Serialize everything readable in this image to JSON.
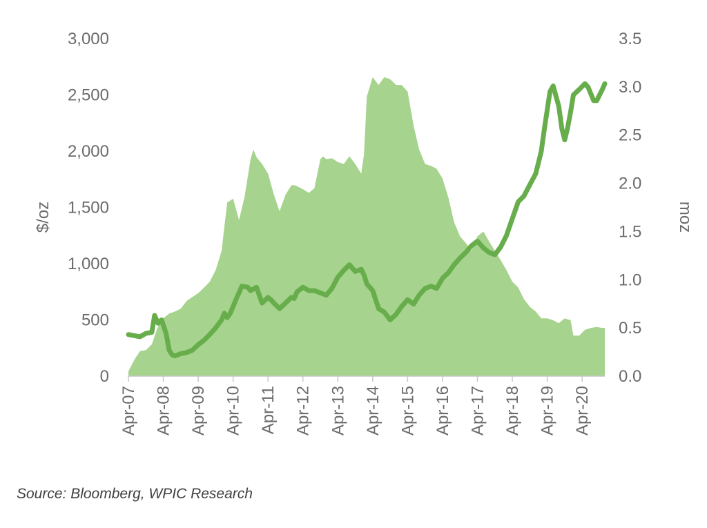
{
  "chart_data": {
    "type": "area",
    "colors": {
      "area": "#a6d38d",
      "line": "#68ad4c",
      "axis": "#c8c8c8",
      "text": "#6b6b6b"
    },
    "x_tick_labels": [
      "Apr-07",
      "Apr-08",
      "Apr-09",
      "Apr-10",
      "Apr-11",
      "Apr-12",
      "Apr-13",
      "Apr-14",
      "Apr-15",
      "Apr-16",
      "Apr-17",
      "Apr-18",
      "Apr-19",
      "Apr-20"
    ],
    "x_range": [
      2007.25,
      2020.9
    ],
    "y_left": {
      "label": "$/oz",
      "range": [
        0,
        3000
      ],
      "ticks": [
        0,
        500,
        1000,
        1500,
        2000,
        2500,
        3000
      ],
      "tick_labels": [
        "0",
        "500",
        "1,000",
        "1,500",
        "2,000",
        "2,500",
        "3,000"
      ]
    },
    "y_right": {
      "label": "moz",
      "range": [
        0,
        3.5
      ],
      "ticks": [
        0,
        0.5,
        1,
        1.5,
        2,
        2.5,
        3,
        3.5
      ],
      "tick_labels": [
        "0.0",
        "0.5",
        "1.0",
        "1.5",
        "2.0",
        "2.5",
        "3.0",
        "3.5"
      ]
    },
    "series": [
      {
        "type": "area",
        "axis": "right",
        "x": [
          2007.25,
          2007.42,
          2007.58,
          2007.75,
          2007.92,
          2008.08,
          2008.25,
          2008.42,
          2008.58,
          2008.75,
          2008.92,
          2009.08,
          2009.25,
          2009.42,
          2009.58,
          2009.75,
          2009.92,
          2010.0,
          2010.08,
          2010.25,
          2010.42,
          2010.58,
          2010.75,
          2010.83,
          2010.92,
          2011.08,
          2011.25,
          2011.42,
          2011.58,
          2011.75,
          2011.92,
          2012.0,
          2012.08,
          2012.25,
          2012.42,
          2012.58,
          2012.75,
          2012.83,
          2012.92,
          2013.08,
          2013.25,
          2013.42,
          2013.58,
          2013.75,
          2013.92,
          2014.0,
          2014.08,
          2014.25,
          2014.42,
          2014.58,
          2014.75,
          2014.92,
          2015.08,
          2015.25,
          2015.42,
          2015.58,
          2015.75,
          2015.92,
          2016.08,
          2016.25,
          2016.42,
          2016.58,
          2016.75,
          2016.92,
          2017.08,
          2017.25,
          2017.42,
          2017.58,
          2017.75,
          2017.92,
          2018.08,
          2018.25,
          2018.42,
          2018.58,
          2018.75,
          2018.92,
          2019.08,
          2019.25,
          2019.42,
          2019.58,
          2019.75,
          2019.92,
          2020.0,
          2020.17,
          2020.33,
          2020.5,
          2020.67,
          2020.83,
          2020.9
        ],
        "y": [
          0.05,
          0.17,
          0.26,
          0.27,
          0.33,
          0.5,
          0.6,
          0.65,
          0.67,
          0.7,
          0.78,
          0.82,
          0.86,
          0.92,
          0.98,
          1.1,
          1.3,
          1.55,
          1.8,
          1.84,
          1.62,
          1.86,
          2.25,
          2.35,
          2.27,
          2.2,
          2.1,
          1.88,
          1.71,
          1.88,
          1.98,
          1.98,
          1.97,
          1.94,
          1.9,
          1.95,
          2.25,
          2.28,
          2.25,
          2.26,
          2.22,
          2.2,
          2.28,
          2.2,
          2.1,
          2.3,
          2.9,
          3.1,
          3.02,
          3.1,
          3.08,
          3.02,
          3.02,
          2.95,
          2.6,
          2.35,
          2.2,
          2.18,
          2.15,
          2.05,
          1.85,
          1.6,
          1.45,
          1.38,
          1.3,
          1.45,
          1.5,
          1.4,
          1.3,
          1.2,
          1.1,
          0.98,
          0.92,
          0.8,
          0.72,
          0.67,
          0.6,
          0.6,
          0.58,
          0.55,
          0.6,
          0.58,
          0.42,
          0.42,
          0.48,
          0.5,
          0.51,
          0.5,
          0.5
        ]
      },
      {
        "type": "line",
        "axis": "left",
        "x": [
          2007.25,
          2007.42,
          2007.58,
          2007.75,
          2007.92,
          2008.0,
          2008.1,
          2008.2,
          2008.33,
          2008.42,
          2008.5,
          2008.58,
          2008.75,
          2008.92,
          2009.08,
          2009.25,
          2009.42,
          2009.58,
          2009.75,
          2009.92,
          2010.0,
          2010.08,
          2010.17,
          2010.33,
          2010.5,
          2010.67,
          2010.75,
          2010.92,
          2011.08,
          2011.25,
          2011.33,
          2011.42,
          2011.58,
          2011.75,
          2011.92,
          2012.0,
          2012.08,
          2012.25,
          2012.42,
          2012.58,
          2012.75,
          2012.92,
          2013.08,
          2013.25,
          2013.42,
          2013.58,
          2013.75,
          2013.92,
          2014.0,
          2014.08,
          2014.25,
          2014.42,
          2014.58,
          2014.75,
          2014.92,
          2015.08,
          2015.25,
          2015.42,
          2015.58,
          2015.75,
          2015.92,
          2016.08,
          2016.25,
          2016.42,
          2016.58,
          2016.75,
          2016.92,
          2017.08,
          2017.25,
          2017.42,
          2017.58,
          2017.75,
          2017.92,
          2018.08,
          2018.25,
          2018.42,
          2018.58,
          2018.75,
          2018.92,
          2019.0,
          2019.08,
          2019.17,
          2019.33,
          2019.42,
          2019.58,
          2019.67,
          2019.75,
          2019.83,
          2019.92,
          2020.0,
          2020.17,
          2020.33,
          2020.42,
          2020.58,
          2020.67,
          2020.75,
          2020.83,
          2020.9
        ],
        "y": [
          370,
          360,
          350,
          380,
          390,
          540,
          470,
          500,
          380,
          230,
          190,
          180,
          200,
          210,
          230,
          280,
          320,
          370,
          430,
          500,
          560,
          520,
          560,
          680,
          800,
          790,
          760,
          790,
          650,
          700,
          680,
          650,
          600,
          650,
          700,
          690,
          750,
          790,
          760,
          760,
          740,
          720,
          780,
          880,
          940,
          990,
          930,
          950,
          900,
          820,
          760,
          600,
          570,
          500,
          550,
          620,
          680,
          640,
          720,
          780,
          800,
          780,
          870,
          920,
          990,
          1050,
          1100,
          1160,
          1200,
          1140,
          1100,
          1080,
          1150,
          1250,
          1400,
          1550,
          1600,
          1700,
          1800,
          1900,
          2000,
          2200,
          2530,
          2580,
          2400,
          2200,
          2100,
          2200,
          2350,
          2500,
          2550,
          2600,
          2570,
          2450,
          2450,
          2500,
          2550,
          2600
        ]
      }
    ]
  },
  "footer": {
    "source": "Source: Bloomberg, WPIC Research"
  }
}
